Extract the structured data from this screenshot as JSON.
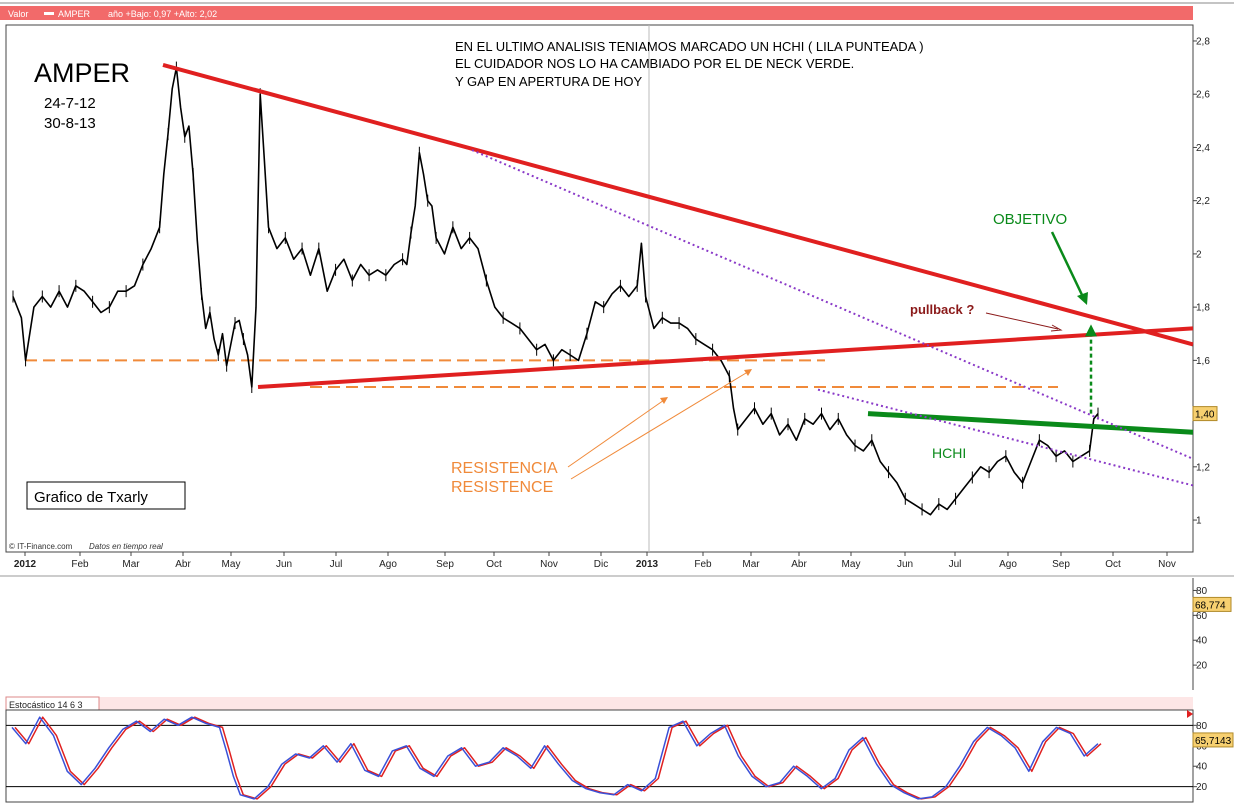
{
  "header": {
    "valor_label": "Valor",
    "symbol": "AMPER",
    "stats": "año +Bajo: 0,97 +Alto: 2,02"
  },
  "title": {
    "ticker": "AMPER",
    "date_from": "24-7-12",
    "date_to": "30-8-13"
  },
  "annotations": {
    "note_line1": "EN EL ULTIMO ANALISIS TENIAMOS MARCADO UN HCHI ( LILA PUNTEADA )",
    "note_line2": "EL  CUIDADOR NOS LO HA CAMBIADO POR EL DE NECK VERDE.",
    "note_line3": "Y GAP EN APERTURA DE HOY",
    "objetivo": "OBJETIVO",
    "pullback": "pullback ?",
    "hchi": "HCHI",
    "resistencia": "RESISTENCIA",
    "resistence": "RESISTENCE",
    "credit": "Grafico  de  Txarly",
    "source": "© IT-Finance.com",
    "source_note": "Datos en tiempo real"
  },
  "colors": {
    "header_red": "#f26a6a",
    "trend_red": "#e02020",
    "green": "#0a8a1a",
    "orange": "#f08a3a",
    "purple": "#8a3ac8",
    "price": "#000000",
    "osc_red": "#e02020",
    "osc_blue": "#3a50d8",
    "value_badge": "#f7d070"
  },
  "chart_data": [
    {
      "type": "line",
      "series_style": "bar",
      "x_ticks": [
        "2012",
        "Feb",
        "Mar",
        "Abr",
        "May",
        "Jun",
        "Jul",
        "Ago",
        "Sep",
        "Oct",
        "Nov",
        "Dic",
        "2013",
        "Feb",
        "Mar",
        "Abr",
        "May",
        "Jun",
        "Jul",
        "Ago",
        "Sep",
        "Oct",
        "Nov"
      ],
      "x_ticks_bold": [
        "2012",
        "2013"
      ],
      "y_ticks": [
        "2,8",
        "2,6",
        "2,4",
        "2,2",
        "2",
        "1,8",
        "1,6",
        "1,4",
        "1,2",
        "1"
      ],
      "ylim": [
        0.88,
        2.86
      ],
      "last_value_label": "1,40",
      "last_value": 1.4,
      "price_path": [
        [
          0,
          1.84
        ],
        [
          2,
          1.76
        ],
        [
          3,
          1.6
        ],
        [
          5,
          1.8
        ],
        [
          7,
          1.84
        ],
        [
          9,
          1.8
        ],
        [
          11,
          1.86
        ],
        [
          13,
          1.8
        ],
        [
          15,
          1.88
        ],
        [
          17,
          1.86
        ],
        [
          19,
          1.82
        ],
        [
          21,
          1.78
        ],
        [
          23,
          1.8
        ],
        [
          25,
          1.86
        ],
        [
          27,
          1.86
        ],
        [
          29,
          1.88
        ],
        [
          31,
          1.96
        ],
        [
          33,
          2.02
        ],
        [
          35,
          2.1
        ],
        [
          36,
          2.3
        ],
        [
          37,
          2.45
        ],
        [
          38,
          2.62
        ],
        [
          39,
          2.7
        ],
        [
          40,
          2.55
        ],
        [
          41,
          2.44
        ],
        [
          42,
          2.48
        ],
        [
          43,
          2.3
        ],
        [
          44,
          2.05
        ],
        [
          45,
          1.85
        ],
        [
          46,
          1.72
        ],
        [
          47,
          1.78
        ],
        [
          48,
          1.68
        ],
        [
          49,
          1.62
        ],
        [
          50,
          1.7
        ],
        [
          51,
          1.58
        ],
        [
          52,
          1.66
        ],
        [
          53,
          1.74
        ],
        [
          54,
          1.75
        ],
        [
          55,
          1.68
        ],
        [
          56,
          1.62
        ],
        [
          57,
          1.5
        ],
        [
          58,
          1.8
        ],
        [
          59,
          2.6
        ],
        [
          60,
          2.35
        ],
        [
          61,
          2.1
        ],
        [
          63,
          2.02
        ],
        [
          65,
          2.06
        ],
        [
          67,
          1.98
        ],
        [
          69,
          2.02
        ],
        [
          71,
          1.92
        ],
        [
          73,
          2.02
        ],
        [
          75,
          1.86
        ],
        [
          77,
          1.94
        ],
        [
          79,
          1.98
        ],
        [
          81,
          1.9
        ],
        [
          83,
          1.96
        ],
        [
          85,
          1.92
        ],
        [
          87,
          1.94
        ],
        [
          89,
          1.92
        ],
        [
          91,
          1.96
        ],
        [
          93,
          1.98
        ],
        [
          94,
          1.96
        ],
        [
          95,
          2.08
        ],
        [
          96,
          2.18
        ],
        [
          97,
          2.38
        ],
        [
          98,
          2.3
        ],
        [
          99,
          2.2
        ],
        [
          100,
          2.18
        ],
        [
          101,
          2.06
        ],
        [
          103,
          2.0
        ],
        [
          105,
          2.1
        ],
        [
          107,
          2.02
        ],
        [
          109,
          2.06
        ],
        [
          111,
          2.02
        ],
        [
          113,
          1.9
        ],
        [
          115,
          1.8
        ],
        [
          117,
          1.76
        ],
        [
          119,
          1.74
        ],
        [
          121,
          1.72
        ],
        [
          123,
          1.68
        ],
        [
          125,
          1.64
        ],
        [
          127,
          1.66
        ],
        [
          129,
          1.6
        ],
        [
          131,
          1.64
        ],
        [
          133,
          1.62
        ],
        [
          135,
          1.6
        ],
        [
          137,
          1.7
        ],
        [
          139,
          1.82
        ],
        [
          141,
          1.8
        ],
        [
          143,
          1.85
        ],
        [
          145,
          1.88
        ],
        [
          147,
          1.84
        ],
        [
          149,
          1.88
        ],
        [
          150,
          2.04
        ],
        [
          151,
          1.84
        ],
        [
          153,
          1.72
        ],
        [
          155,
          1.76
        ],
        [
          157,
          1.74
        ],
        [
          159,
          1.74
        ],
        [
          161,
          1.72
        ],
        [
          163,
          1.68
        ],
        [
          165,
          1.66
        ],
        [
          167,
          1.64
        ],
        [
          169,
          1.6
        ],
        [
          171,
          1.54
        ],
        [
          172,
          1.42
        ],
        [
          173,
          1.34
        ],
        [
          175,
          1.38
        ],
        [
          177,
          1.42
        ],
        [
          179,
          1.36
        ],
        [
          181,
          1.4
        ],
        [
          183,
          1.32
        ],
        [
          185,
          1.36
        ],
        [
          187,
          1.3
        ],
        [
          189,
          1.38
        ],
        [
          191,
          1.36
        ],
        [
          193,
          1.4
        ],
        [
          195,
          1.34
        ],
        [
          197,
          1.38
        ],
        [
          199,
          1.32
        ],
        [
          201,
          1.28
        ],
        [
          203,
          1.26
        ],
        [
          205,
          1.3
        ],
        [
          207,
          1.22
        ],
        [
          209,
          1.18
        ],
        [
          211,
          1.14
        ],
        [
          213,
          1.08
        ],
        [
          215,
          1.06
        ],
        [
          217,
          1.04
        ],
        [
          219,
          1.02
        ],
        [
          221,
          1.06
        ],
        [
          223,
          1.04
        ],
        [
          225,
          1.08
        ],
        [
          227,
          1.12
        ],
        [
          229,
          1.16
        ],
        [
          231,
          1.2
        ],
        [
          233,
          1.18
        ],
        [
          235,
          1.22
        ],
        [
          237,
          1.24
        ],
        [
          239,
          1.18
        ],
        [
          241,
          1.14
        ],
        [
          243,
          1.22
        ],
        [
          245,
          1.3
        ],
        [
          247,
          1.28
        ],
        [
          249,
          1.24
        ],
        [
          251,
          1.26
        ],
        [
          253,
          1.22
        ],
        [
          255,
          1.24
        ],
        [
          257,
          1.26
        ],
        [
          258,
          1.38
        ],
        [
          259,
          1.4
        ]
      ],
      "trendlines": {
        "resistance_red": [
          [
            40,
            2.71
          ],
          [
            1193,
            1.66
          ]
        ],
        "support_red": [
          [
            57,
            1.5
          ],
          [
            1193,
            1.72
          ]
        ],
        "neck_green": [
          [
            868,
            1.4
          ],
          [
            1193,
            1.33
          ]
        ],
        "hchi_purple": [
          [
            472,
            2.39
          ],
          [
            1193,
            1.23
          ]
        ],
        "hchi_purple_low": [
          [
            818,
            1.49
          ],
          [
            1193,
            1.13
          ]
        ]
      },
      "levels": {
        "resistencia_1": 1.6,
        "resistencia_2": 1.5
      }
    },
    {
      "type": "line",
      "panel": "volume",
      "y_ticks": [
        "80",
        "60",
        "40",
        "20"
      ],
      "ylim": [
        0,
        90
      ],
      "last_value_label": "68,774",
      "last_value": 68.774
    },
    {
      "type": "line",
      "panel": "oscillator",
      "title": "Estocástico 14 6 3",
      "y_ticks": [
        "80",
        "60",
        "40",
        "20"
      ],
      "ylim": [
        5,
        95
      ],
      "overbought": 80,
      "oversold": 20,
      "last_value_label": "65,7143",
      "last_value": 65.7143,
      "k_path": [
        [
          0,
          78
        ],
        [
          4,
          62
        ],
        [
          8,
          88
        ],
        [
          12,
          70
        ],
        [
          16,
          35
        ],
        [
          20,
          22
        ],
        [
          24,
          38
        ],
        [
          28,
          58
        ],
        [
          32,
          76
        ],
        [
          36,
          84
        ],
        [
          40,
          74
        ],
        [
          44,
          86
        ],
        [
          48,
          80
        ],
        [
          52,
          88
        ],
        [
          56,
          82
        ],
        [
          60,
          78
        ],
        [
          62,
          55
        ],
        [
          64,
          30
        ],
        [
          66,
          12
        ],
        [
          70,
          8
        ],
        [
          74,
          20
        ],
        [
          78,
          42
        ],
        [
          82,
          52
        ],
        [
          86,
          48
        ],
        [
          90,
          60
        ],
        [
          94,
          44
        ],
        [
          98,
          62
        ],
        [
          102,
          36
        ],
        [
          106,
          30
        ],
        [
          110,
          55
        ],
        [
          114,
          60
        ],
        [
          118,
          38
        ],
        [
          122,
          30
        ],
        [
          126,
          50
        ],
        [
          130,
          58
        ],
        [
          134,
          40
        ],
        [
          138,
          44
        ],
        [
          142,
          58
        ],
        [
          146,
          50
        ],
        [
          150,
          38
        ],
        [
          154,
          60
        ],
        [
          158,
          42
        ],
        [
          162,
          26
        ],
        [
          166,
          18
        ],
        [
          170,
          14
        ],
        [
          174,
          12
        ],
        [
          178,
          22
        ],
        [
          182,
          16
        ],
        [
          186,
          28
        ],
        [
          190,
          78
        ],
        [
          194,
          84
        ],
        [
          198,
          60
        ],
        [
          202,
          72
        ],
        [
          206,
          80
        ],
        [
          210,
          50
        ],
        [
          214,
          30
        ],
        [
          218,
          20
        ],
        [
          222,
          24
        ],
        [
          226,
          40
        ],
        [
          230,
          30
        ],
        [
          234,
          18
        ],
        [
          238,
          28
        ],
        [
          242,
          56
        ],
        [
          246,
          68
        ],
        [
          250,
          42
        ],
        [
          254,
          22
        ],
        [
          258,
          14
        ],
        [
          262,
          8
        ],
        [
          266,
          10
        ],
        [
          270,
          20
        ],
        [
          274,
          40
        ],
        [
          278,
          64
        ],
        [
          282,
          78
        ],
        [
          286,
          70
        ],
        [
          290,
          58
        ],
        [
          294,
          35
        ],
        [
          298,
          64
        ],
        [
          302,
          78
        ],
        [
          306,
          72
        ],
        [
          310,
          50
        ],
        [
          314,
          62
        ]
      ]
    }
  ]
}
